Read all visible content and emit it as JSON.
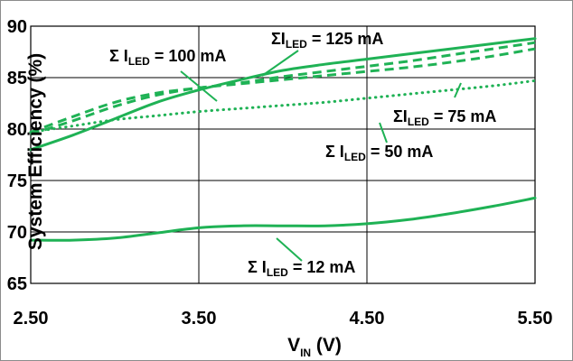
{
  "colors": {
    "series": "#1fb255",
    "grid": "#000000",
    "text": "#000000"
  },
  "chart_data": {
    "type": "line",
    "title": "",
    "xlabel": {
      "main": "V",
      "sub": "IN",
      "unit": " (V)"
    },
    "ylabel": "System Efficiency (%)",
    "xlim": [
      2.5,
      5.5
    ],
    "ylim": [
      65,
      90
    ],
    "xticks": [
      2.5,
      3.5,
      4.5,
      5.5
    ],
    "xtick_labels": [
      "2.50",
      "3.50",
      "4.50",
      "5.50"
    ],
    "yticks": [
      65,
      70,
      75,
      80,
      85,
      90
    ],
    "ytick_labels": [
      "65",
      "70",
      "75",
      "80",
      "85",
      "90"
    ],
    "grid": true,
    "series": [
      {
        "name": "ΣI_LED = 12 mA",
        "style": "solid",
        "x": [
          2.5,
          2.75,
          3.0,
          3.25,
          3.5,
          3.75,
          4.0,
          4.25,
          4.5,
          4.75,
          5.0,
          5.25,
          5.5
        ],
        "y": [
          69.2,
          69.2,
          69.4,
          69.9,
          70.4,
          70.6,
          70.6,
          70.6,
          70.8,
          71.2,
          71.8,
          72.5,
          73.3
        ]
      },
      {
        "name": "ΣI_LED = 50 mA",
        "style": "dotted",
        "x": [
          2.5,
          2.75,
          3.0,
          3.25,
          3.5,
          3.75,
          4.0,
          4.25,
          4.5,
          4.75,
          5.0,
          5.25,
          5.5
        ],
        "y": [
          79.7,
          80.3,
          80.9,
          81.3,
          81.7,
          82.0,
          82.3,
          82.6,
          83.0,
          83.4,
          83.8,
          84.2,
          84.7
        ]
      },
      {
        "name": "ΣI_LED = 75 mA",
        "style": "dashed",
        "x": [
          2.5,
          2.75,
          3.0,
          3.25,
          3.5,
          3.75,
          4.0,
          4.25,
          4.5,
          4.75,
          5.0,
          5.25,
          5.5
        ],
        "y": [
          79.5,
          80.8,
          82.2,
          83.3,
          84.0,
          84.4,
          84.8,
          85.2,
          85.6,
          86.0,
          86.5,
          87.1,
          87.8
        ]
      },
      {
        "name": "ΣI_LED = 100 mA",
        "style": "dashed",
        "x": [
          2.5,
          2.75,
          3.0,
          3.25,
          3.5,
          3.75,
          4.0,
          4.25,
          4.5,
          4.75,
          5.0,
          5.25,
          5.5
        ],
        "y": [
          79.7,
          81.2,
          82.6,
          83.5,
          84.0,
          84.5,
          85.1,
          85.6,
          86.1,
          86.6,
          87.2,
          87.8,
          88.4
        ]
      },
      {
        "name": "ΣI_LED = 125 mA",
        "style": "solid",
        "x": [
          2.5,
          2.75,
          3.0,
          3.25,
          3.5,
          3.75,
          4.0,
          4.25,
          4.5,
          4.75,
          5.0,
          5.25,
          5.5
        ],
        "y": [
          78.0,
          79.4,
          81.0,
          82.6,
          83.8,
          84.8,
          85.7,
          86.3,
          86.8,
          87.3,
          87.8,
          88.3,
          88.8
        ]
      }
    ],
    "annotations": [
      {
        "text_main": "Σ I",
        "text_sub": "LED",
        "text_tail": " = 100 mA"
      },
      {
        "text_main": "ΣI",
        "text_sub": "LED",
        "text_tail": " = 125 mA"
      },
      {
        "text_main": "ΣI",
        "text_sub": "LED",
        "text_tail": " = 75 mA"
      },
      {
        "text_main": "Σ I",
        "text_sub": "LED",
        "text_tail": " = 50 mA"
      },
      {
        "text_main": "Σ I",
        "text_sub": "LED",
        "text_tail": " = 12 mA"
      }
    ]
  }
}
